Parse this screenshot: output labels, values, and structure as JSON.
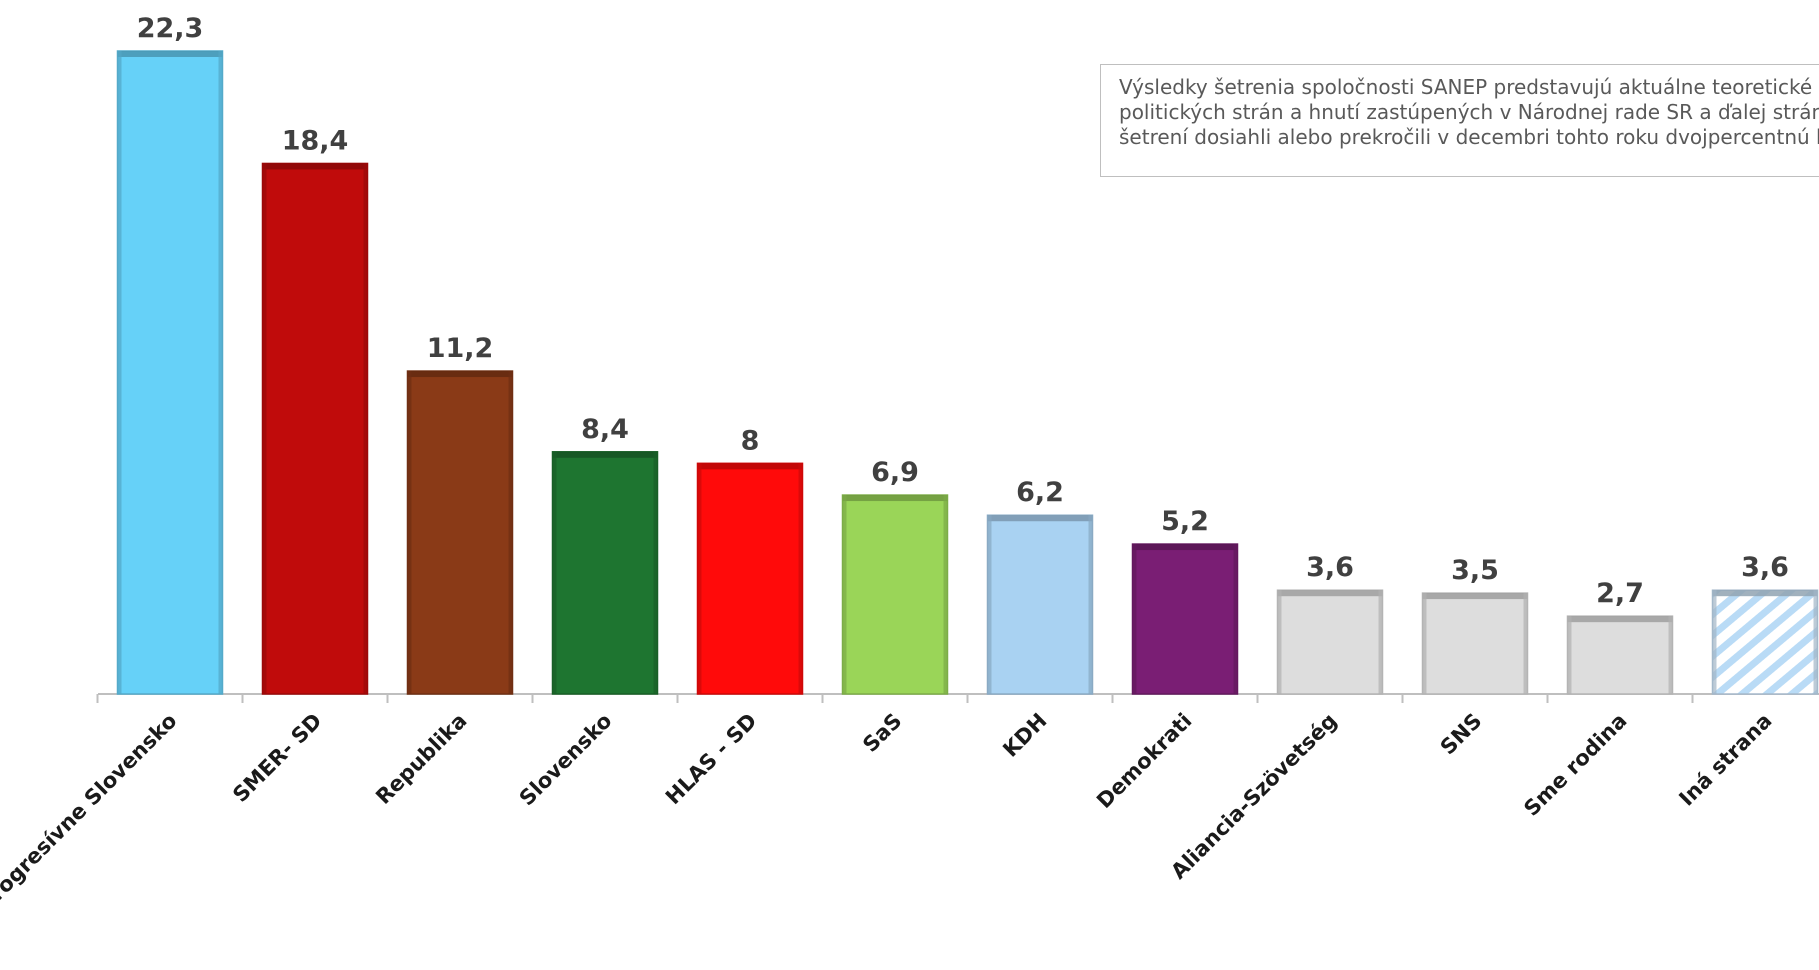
{
  "note": {
    "text": "Výsledky šetrenia spoločnosti SANEP predstavujú aktuálne teoretické volebné zisky politických strán a hnutí zastúpených v Národnej rade SR a ďalej strán a hnutí, ktoré v šetrení dosiahli alebo prekročili v decembri tohto roku dvojpercentnú hranicu."
  },
  "chart_data": {
    "type": "bar",
    "title": "",
    "xlabel": "",
    "ylabel": "",
    "ylim": [
      0,
      22.3
    ],
    "grid": false,
    "legend": "none",
    "categories": [
      "Progresívne Slovensko",
      "SMER- SD",
      "Republika",
      "Slovensko",
      "HLAS - SD",
      "SaS",
      "KDH",
      "Demokrati",
      "Aliancia-Szövetség",
      "SNS",
      "Sme rodina",
      "Iná strana"
    ],
    "values": [
      22.3,
      18.4,
      11.2,
      8.4,
      8,
      6.9,
      6.2,
      5.2,
      3.6,
      3.5,
      2.7,
      3.6
    ],
    "data_labels": [
      "22,3",
      "18,4",
      "11,2",
      "8,4",
      "8",
      "6,9",
      "6,2",
      "5,2",
      "3,6",
      "3,5",
      "2,7",
      "3,6"
    ],
    "colors": [
      "#66D1F8",
      "#C00B0B",
      "#8A3A17",
      "#1E7530",
      "#FF0A0A",
      "#9AD558",
      "#A9D2F2",
      "#7A1E74",
      "#DDDDDD",
      "#DDDDDD",
      "#DDDDDD",
      "#C9E2F7"
    ],
    "hatched": [
      false,
      false,
      false,
      false,
      false,
      false,
      false,
      false,
      false,
      false,
      false,
      true
    ]
  }
}
